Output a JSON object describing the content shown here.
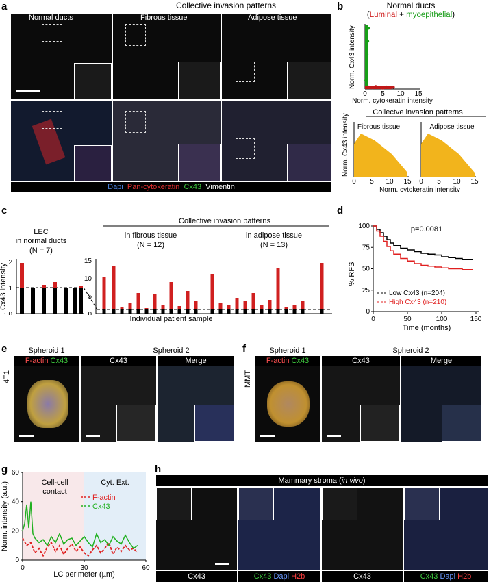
{
  "panels": {
    "a": "a",
    "b": "b",
    "c": "c",
    "d": "d",
    "e": "e",
    "f": "f",
    "g": "g",
    "h": "h"
  },
  "a": {
    "header": "Collective invasion patterns",
    "titles": [
      "Normal ducts",
      "Fibrous tissue",
      "Adipose tissue"
    ],
    "legend": {
      "dapi": "Dapi",
      "pancytokeratin": "Pan-cytokeratin",
      "cx43": "Cx43",
      "vimentin": "Vimentin"
    },
    "colors": {
      "dapi": "#4a7fd6",
      "pancytokeratin": "#e03030",
      "cx43": "#3ec43e",
      "vimentin": "#ffffff"
    }
  },
  "b": {
    "title": "Normal ducts",
    "luminal": "Luminal",
    "plus": " + ",
    "myoepithelial": "myoepithelial",
    "open_paren": "(",
    "close_paren": ")",
    "ylabel": "Norm. Cx43 intensity",
    "xlabel": "Norm. cytokeratin intensity",
    "header2": "Collectve invasion patterns",
    "sub1": "Fibrous tissue",
    "sub2": "Adipose tissue",
    "ticks_y": [
      "0",
      "5",
      "10",
      "15"
    ],
    "ticks_x": [
      "0",
      "5",
      "10",
      "15"
    ]
  },
  "c": {
    "header": "Collective invasion patterns",
    "g1_title1": "LEC",
    "g1_title2": "in normal ducts",
    "g1_n": "(N = 7)",
    "g2_title": "in fibrous tissue",
    "g2_n": "(N = 12)",
    "g3_title": "in adipose tissue",
    "g3_n": "(N = 13)",
    "ylabel": "Norm. Cx43 intensity",
    "xlabel": "Individual patient sample",
    "left_ticks": [
      "0",
      "1",
      "2"
    ],
    "right_ticks": [
      "0",
      "5",
      "10",
      "15"
    ]
  },
  "d": {
    "p": "p=0.0081",
    "ylabel": "% RFS",
    "xlabel": "Time (months)",
    "legend_low": "Low Cx43 (n=204)",
    "legend_high": "High Cx43 (n=210)",
    "yticks": [
      "0",
      "25",
      "50",
      "75",
      "100"
    ],
    "xticks": [
      "0",
      "50",
      "100",
      "150"
    ],
    "colors": {
      "low": "#000000",
      "high": "#e02020"
    }
  },
  "e": {
    "sph1": "Spheroid 1",
    "factin": "F-actin",
    "cx43": "Cx43",
    "sph2": "Spheroid 2",
    "col2": "Cx43",
    "col3": "Merge",
    "side": "4T1"
  },
  "f": {
    "sph1": "Spheroid 1",
    "factin": "F-actin",
    "cx43": "Cx43",
    "sph2": "Spheroid 2",
    "col2": "Cx43",
    "col3": "Merge",
    "side": "MMT"
  },
  "g": {
    "ylabel": "Norm. intensity (a.u.)",
    "xlabel": "LC perimeter (µm)",
    "region1": "Cell-cell\ncontact",
    "region2": "Cyt. Ext.",
    "legend_factin": "F-actin",
    "legend_cx43": "Cx43",
    "yticks": [
      "0",
      "20",
      "40",
      "60"
    ],
    "xticks": [
      "0",
      "30",
      "60"
    ]
  },
  "h": {
    "header": "Mammary stroma (",
    "header_it": "in vivo",
    "header_end": ")",
    "bottom": [
      "Cx43",
      "Cx43",
      "Dapi",
      "H2b",
      "Cx43",
      "Cx43",
      "Dapi",
      "H2b"
    ]
  },
  "chart_data": [
    {
      "type": "line",
      "title": "",
      "xlabel": "Time (months)",
      "ylabel": "% RFS",
      "xlim": [
        0,
        150
      ],
      "ylim": [
        0,
        100
      ],
      "series": [
        {
          "name": "Low Cx43 (n=204)",
          "x": [
            0,
            5,
            10,
            15,
            20,
            25,
            30,
            40,
            50,
            60,
            70,
            80,
            90,
            100,
            110,
            120,
            130,
            140,
            145
          ],
          "y": [
            100,
            96,
            92,
            88,
            84,
            80,
            77,
            74,
            72,
            70,
            68,
            67,
            66,
            64,
            63,
            62,
            61,
            61,
            61
          ]
        },
        {
          "name": "High Cx43 (n=210)",
          "x": [
            0,
            5,
            10,
            15,
            20,
            25,
            30,
            40,
            50,
            60,
            70,
            80,
            90,
            100,
            110,
            120,
            130,
            140,
            145
          ],
          "y": [
            100,
            94,
            88,
            82,
            76,
            71,
            67,
            62,
            59,
            56,
            54,
            53,
            52,
            51,
            50,
            50,
            49,
            49,
            49
          ]
        }
      ]
    },
    {
      "type": "line",
      "title": "",
      "xlabel": "LC perimeter (µm)",
      "ylabel": "Norm. intensity (a.u.)",
      "xlim": [
        0,
        60
      ],
      "ylim": [
        0,
        60
      ],
      "series": [
        {
          "name": "F-actin",
          "x": [
            0,
            2,
            4,
            6,
            8,
            10,
            12,
            14,
            16,
            18,
            20,
            22,
            24,
            26,
            28,
            30,
            32,
            34,
            36,
            38,
            40,
            42,
            44,
            46,
            48,
            50,
            52,
            54,
            56
          ],
          "y": [
            15,
            10,
            12,
            5,
            8,
            3,
            9,
            12,
            6,
            10,
            4,
            8,
            11,
            6,
            9,
            5,
            3,
            7,
            10,
            5,
            8,
            12,
            4,
            9,
            6,
            10,
            7,
            8,
            5
          ]
        },
        {
          "name": "Cx43",
          "x": [
            0,
            1,
            2,
            3,
            4,
            5,
            6,
            8,
            10,
            12,
            14,
            16,
            18,
            20,
            22,
            24,
            26,
            28,
            30,
            32,
            34,
            36,
            38,
            40,
            42,
            44,
            46,
            48,
            50,
            52,
            54,
            56
          ],
          "y": [
            20,
            25,
            38,
            22,
            40,
            18,
            15,
            12,
            14,
            10,
            16,
            12,
            18,
            11,
            14,
            15,
            10,
            13,
            16,
            12,
            9,
            18,
            12,
            14,
            10,
            16,
            13,
            11,
            17,
            12,
            8,
            10
          ]
        }
      ]
    },
    {
      "type": "scatter",
      "title": "Normal ducts",
      "xlabel": "Norm. cytokeratin intensity",
      "ylabel": "Norm. Cx43 intensity",
      "xlim": [
        0,
        15
      ],
      "ylim": [
        0,
        15
      ],
      "series": [
        {
          "name": "Luminal",
          "x": [
            1,
            2,
            3,
            4,
            5,
            6,
            7,
            8
          ],
          "y": [
            0.5,
            0.3,
            0.6,
            0.4,
            0.2,
            0.5,
            0.3,
            0.4
          ]
        },
        {
          "name": "myoepithelial",
          "x": [
            0.2,
            0.4,
            0.6,
            0.8,
            1.0,
            0.5
          ],
          "y": [
            2,
            5,
            8,
            11,
            14,
            4
          ]
        }
      ]
    }
  ]
}
